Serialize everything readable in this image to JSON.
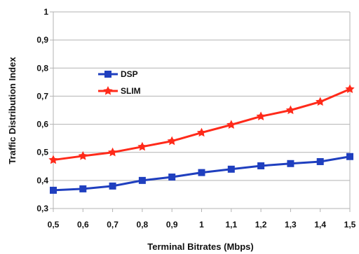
{
  "chart_data": {
    "type": "line",
    "title": "",
    "xlabel": "Terminal Bitrates (Mbps)",
    "ylabel": "Traffic Distribution Index",
    "x": [
      "0,5",
      "0,6",
      "0,7",
      "0,8",
      "0,9",
      "1",
      "1,1",
      "1,2",
      "1,3",
      "1,4",
      "1,5"
    ],
    "y_ticks": [
      "0,3",
      "0,4",
      "0,5",
      "0,6",
      "0,7",
      "0,8",
      "0,9",
      "1"
    ],
    "ylim": [
      0.3,
      1.0
    ],
    "grid": "horizontal",
    "legend_position": "upper-left-inside",
    "series": [
      {
        "name": "DSP",
        "color": "#1f3fbf",
        "marker": "square",
        "values": [
          0.365,
          0.37,
          0.38,
          0.4,
          0.412,
          0.428,
          0.44,
          0.452,
          0.46,
          0.467,
          0.485
        ]
      },
      {
        "name": "SLIM",
        "color": "#ff2a1a",
        "marker": "star",
        "values": [
          0.473,
          0.487,
          0.5,
          0.52,
          0.54,
          0.57,
          0.598,
          0.628,
          0.65,
          0.68,
          0.725
        ]
      }
    ]
  }
}
